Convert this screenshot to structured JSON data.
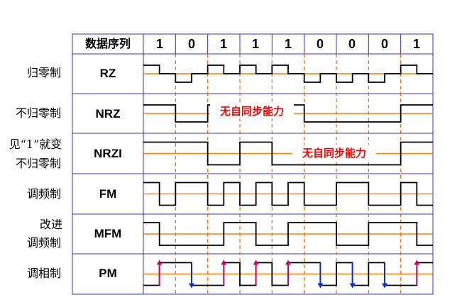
{
  "header": {
    "sequence_label": "数据序列",
    "bits": [
      "1",
      "0",
      "1",
      "1",
      "1",
      "0",
      "0",
      "0",
      "1"
    ]
  },
  "rows": [
    {
      "id": "rz",
      "label_lines": [
        "归零制"
      ],
      "code": "RZ",
      "note": ""
    },
    {
      "id": "nrz",
      "label_lines": [
        "不归零制"
      ],
      "code": "NRZ",
      "note": "无自同步能力"
    },
    {
      "id": "nrzi",
      "label_lines": [
        "见“1”就变",
        "不归零制"
      ],
      "code": "NRZI",
      "note": "无自同步能力"
    },
    {
      "id": "fm",
      "label_lines": [
        "调频制"
      ],
      "code": "FM",
      "note": ""
    },
    {
      "id": "mfm",
      "label_lines": [
        "改进",
        "调频制"
      ],
      "code": "MFM",
      "note": ""
    },
    {
      "id": "pm",
      "label_lines": [
        "调相制"
      ],
      "code": "PM",
      "note": ""
    }
  ],
  "colors": {
    "grid": "#3333cc",
    "baseline": "#ff8000",
    "divider": "#ff6600",
    "wave": "#000000",
    "note": "#ff0000",
    "arrow_up": "#cc0066",
    "arrow_down": "#0033cc"
  }
}
